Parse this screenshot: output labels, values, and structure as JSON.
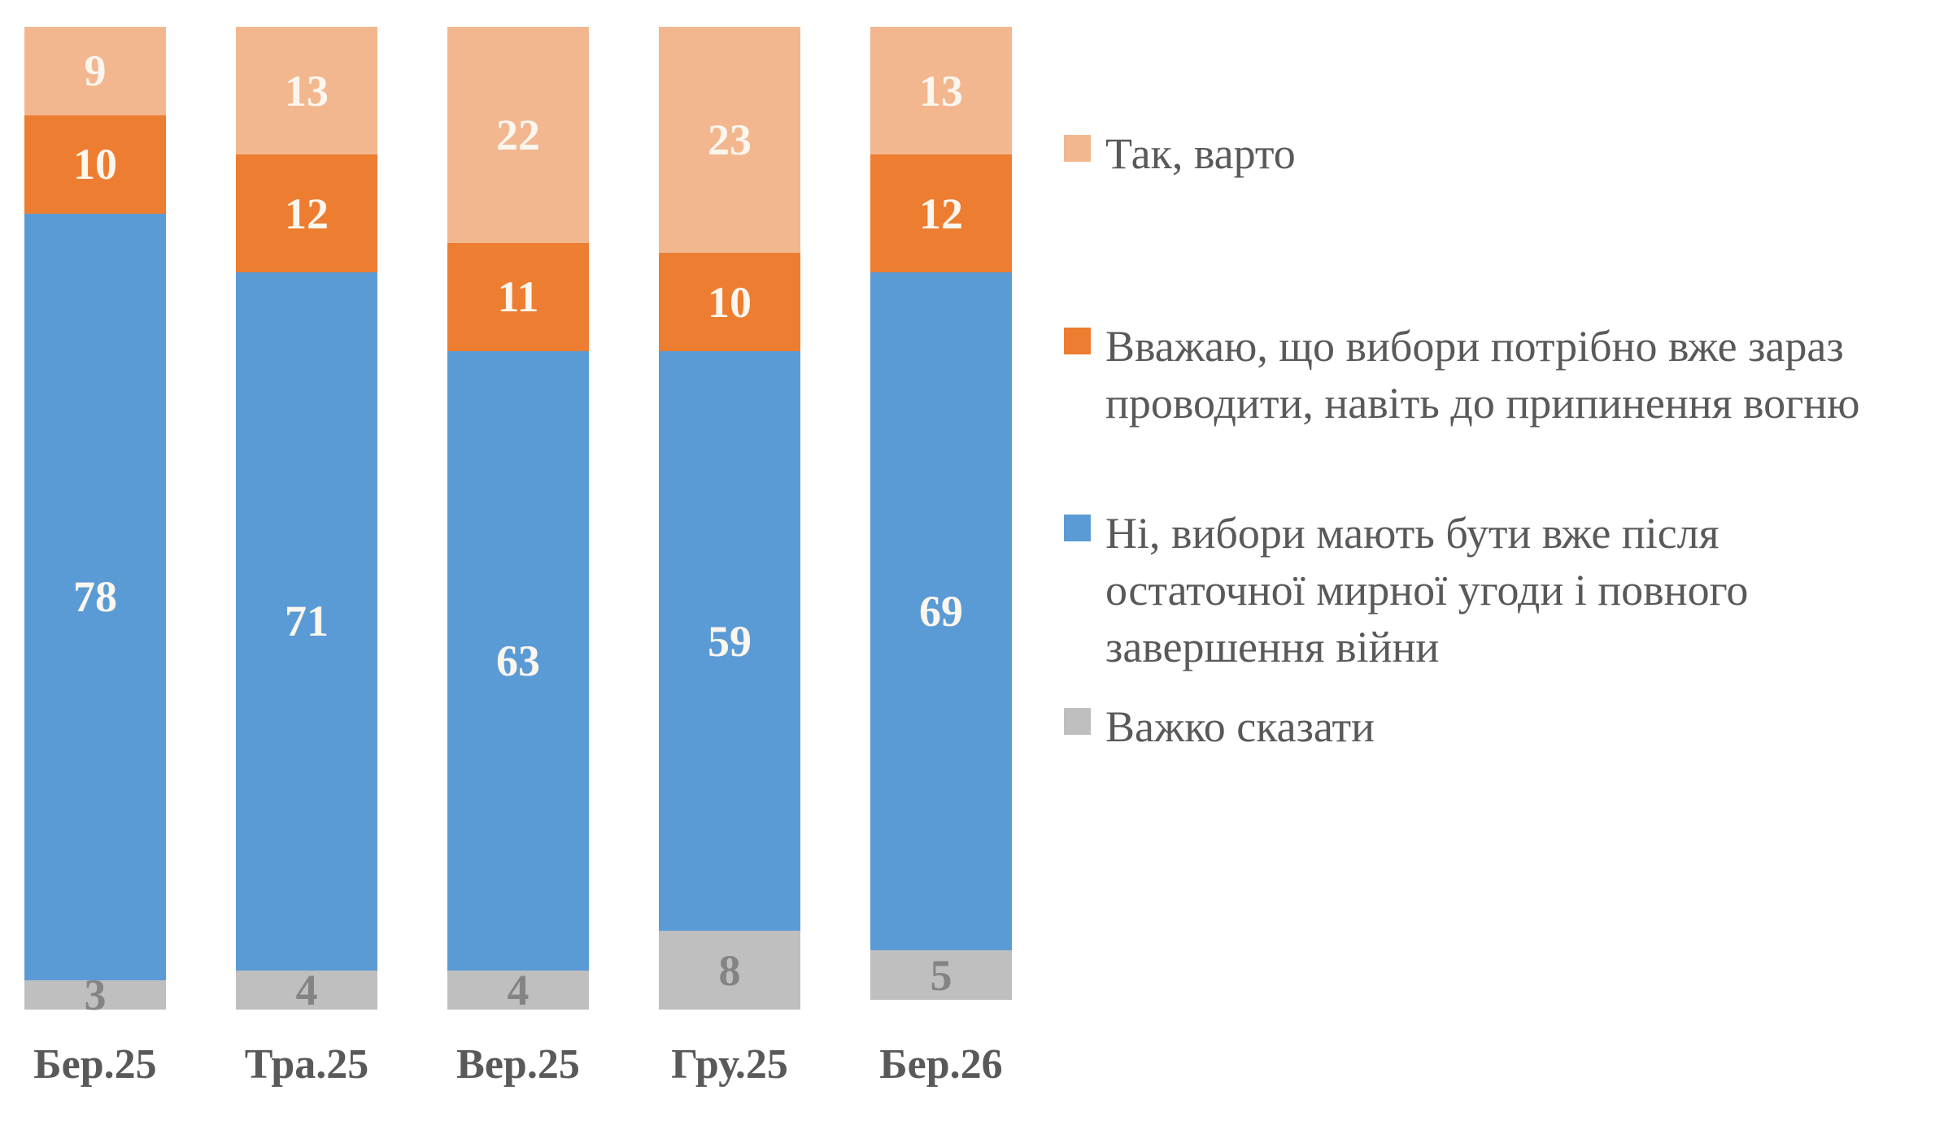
{
  "chart_data": {
    "type": "bar",
    "stacked": true,
    "orientation": "vertical",
    "unit": "percent",
    "title": "",
    "xlabel": "",
    "ylabel": "",
    "ylim": [
      0,
      100
    ],
    "grid": false,
    "legend_position": "right",
    "value_labels": true,
    "categories": [
      "Бер.25",
      "Тра.25",
      "Вер.25",
      "Гру.25",
      "Бер.26"
    ],
    "series": [
      {
        "name": "Так, варто",
        "color": "#F2B78F",
        "label_color": "#FBF6EE",
        "values": [
          9,
          13,
          22,
          23,
          13
        ]
      },
      {
        "name": "Вважаю, що вибори потрібно вже зараз проводити, навіть до припинення вогню",
        "color": "#ED7D31",
        "label_color": "#FBF6EE",
        "values": [
          10,
          12,
          11,
          10,
          12
        ]
      },
      {
        "name": "Ні, вибори мають бути вже після остаточної мирної угоди і повного завершення війни",
        "color": "#5B9BD5",
        "label_color": "#FBF6EE",
        "values": [
          78,
          71,
          63,
          59,
          69
        ]
      },
      {
        "name": "Важко сказати",
        "color": "#BFBFBF",
        "label_color": "#848484",
        "values": [
          3,
          4,
          4,
          8,
          5
        ]
      }
    ]
  },
  "legend": {
    "items": [
      {
        "label": "Так, варто",
        "color": "#F2B78F"
      },
      {
        "label": "Вважаю, що вибори потрібно вже зараз\nпроводити, навіть до припинення вогню",
        "color": "#ED7D31"
      },
      {
        "label": "Ні, вибори мають бути вже після\nостаточної мирної угоди і повного\nзавершення війни",
        "color": "#5B9BD5"
      },
      {
        "label": "Важко сказати",
        "color": "#BFBFBF"
      }
    ]
  },
  "text_colors": {
    "axis_label": "#595959",
    "legend_text": "#595959"
  }
}
